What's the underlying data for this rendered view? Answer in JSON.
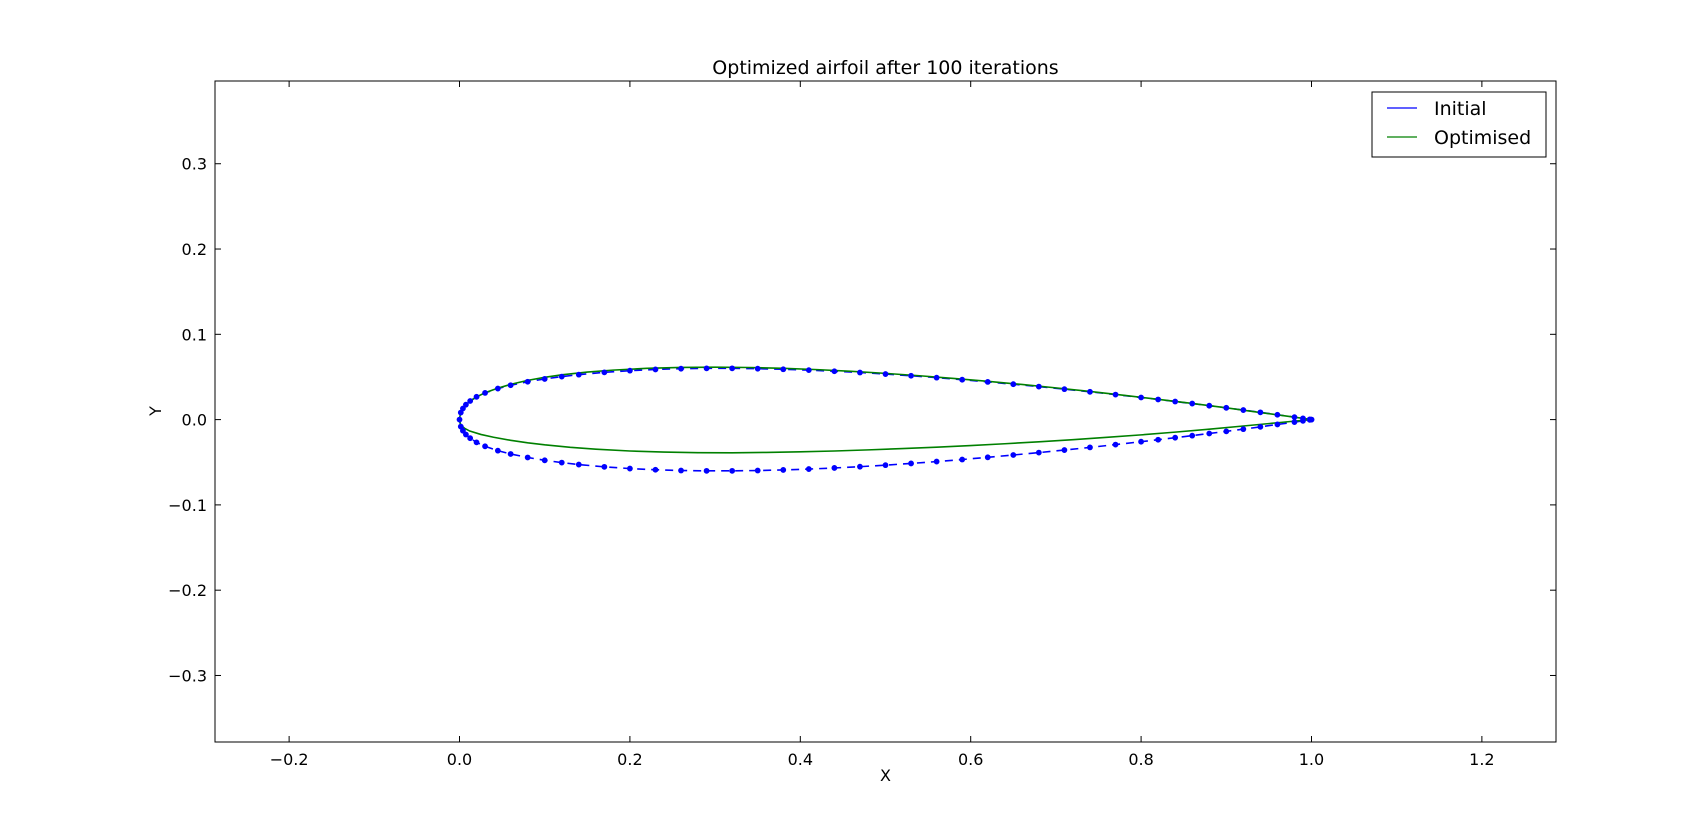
{
  "chart_data": {
    "type": "line",
    "title": "Optimized airfoil after 100 iterations",
    "xlabel": "X",
    "ylabel": "Y",
    "xlim": [
      -0.287,
      1.287
    ],
    "ylim": [
      -0.378,
      0.397
    ],
    "xticks": [
      -0.2,
      0.0,
      0.2,
      0.4,
      0.6,
      0.8,
      1.0,
      1.2
    ],
    "xtick_labels": [
      "−0.2",
      "0.0",
      "0.2",
      "0.4",
      "0.6",
      "0.8",
      "1.0",
      "1.2"
    ],
    "yticks": [
      -0.3,
      -0.2,
      -0.1,
      0.0,
      0.1,
      0.2,
      0.3
    ],
    "ytick_labels": [
      "−0.3",
      "−0.2",
      "−0.1",
      "0.0",
      "0.1",
      "0.2",
      "0.3"
    ],
    "grid": false,
    "legend_position": "top-right",
    "series": [
      {
        "name": "Initial",
        "color": "#0000ff",
        "style": "dashed line with circle markers",
        "points": [
          [
            1.0,
            0.0
          ],
          [
            0.998,
            0.0003
          ],
          [
            0.99,
            0.0014
          ],
          [
            0.98,
            0.0029
          ],
          [
            0.96,
            0.0057
          ],
          [
            0.94,
            0.0085
          ],
          [
            0.92,
            0.0112
          ],
          [
            0.9,
            0.0138
          ],
          [
            0.88,
            0.0163
          ],
          [
            0.86,
            0.0188
          ],
          [
            0.84,
            0.0212
          ],
          [
            0.82,
            0.0236
          ],
          [
            0.8,
            0.0259
          ],
          [
            0.77,
            0.0293
          ],
          [
            0.74,
            0.0326
          ],
          [
            0.71,
            0.0357
          ],
          [
            0.68,
            0.0387
          ],
          [
            0.65,
            0.0415
          ],
          [
            0.62,
            0.0442
          ],
          [
            0.59,
            0.0468
          ],
          [
            0.56,
            0.0492
          ],
          [
            0.53,
            0.0514
          ],
          [
            0.5,
            0.0534
          ],
          [
            0.47,
            0.0552
          ],
          [
            0.44,
            0.0567
          ],
          [
            0.41,
            0.058
          ],
          [
            0.38,
            0.059
          ],
          [
            0.35,
            0.0597
          ],
          [
            0.32,
            0.0601
          ],
          [
            0.29,
            0.0601
          ],
          [
            0.26,
            0.0597
          ],
          [
            0.23,
            0.0588
          ],
          [
            0.2,
            0.0574
          ],
          [
            0.17,
            0.0554
          ],
          [
            0.14,
            0.0527
          ],
          [
            0.12,
            0.0504
          ],
          [
            0.1,
            0.0477
          ],
          [
            0.08,
            0.0444
          ],
          [
            0.06,
            0.0403
          ],
          [
            0.045,
            0.0364
          ],
          [
            0.03,
            0.0313
          ],
          [
            0.02,
            0.0267
          ],
          [
            0.0125,
            0.0218
          ],
          [
            0.0075,
            0.0175
          ],
          [
            0.004,
            0.013
          ],
          [
            0.0015,
            0.0082
          ],
          [
            0.0,
            0.0
          ],
          [
            0.0015,
            -0.0082
          ],
          [
            0.004,
            -0.013
          ],
          [
            0.0075,
            -0.0175
          ],
          [
            0.0125,
            -0.0218
          ],
          [
            0.02,
            -0.0267
          ],
          [
            0.03,
            -0.0313
          ],
          [
            0.045,
            -0.0364
          ],
          [
            0.06,
            -0.0403
          ],
          [
            0.08,
            -0.0444
          ],
          [
            0.1,
            -0.0477
          ],
          [
            0.12,
            -0.0504
          ],
          [
            0.14,
            -0.0527
          ],
          [
            0.17,
            -0.0554
          ],
          [
            0.2,
            -0.0574
          ],
          [
            0.23,
            -0.0588
          ],
          [
            0.26,
            -0.0597
          ],
          [
            0.29,
            -0.0601
          ],
          [
            0.32,
            -0.0601
          ],
          [
            0.35,
            -0.0597
          ],
          [
            0.38,
            -0.059
          ],
          [
            0.41,
            -0.058
          ],
          [
            0.44,
            -0.0567
          ],
          [
            0.47,
            -0.0552
          ],
          [
            0.5,
            -0.0534
          ],
          [
            0.53,
            -0.0514
          ],
          [
            0.56,
            -0.0492
          ],
          [
            0.59,
            -0.0468
          ],
          [
            0.62,
            -0.0442
          ],
          [
            0.65,
            -0.0415
          ],
          [
            0.68,
            -0.0387
          ],
          [
            0.71,
            -0.0357
          ],
          [
            0.74,
            -0.0326
          ],
          [
            0.77,
            -0.0293
          ],
          [
            0.8,
            -0.0259
          ],
          [
            0.82,
            -0.0236
          ],
          [
            0.84,
            -0.0212
          ],
          [
            0.86,
            -0.0188
          ],
          [
            0.88,
            -0.0163
          ],
          [
            0.9,
            -0.0138
          ],
          [
            0.92,
            -0.0112
          ],
          [
            0.94,
            -0.0085
          ],
          [
            0.96,
            -0.0057
          ],
          [
            0.98,
            -0.0029
          ],
          [
            0.99,
            -0.0014
          ],
          [
            0.998,
            -0.0003
          ],
          [
            1.0,
            0.0
          ]
        ]
      },
      {
        "name": "Optimised",
        "color": "#008000",
        "style": "solid line",
        "points": [
          [
            1.0,
            0.0
          ],
          [
            0.98,
            0.0028
          ],
          [
            0.96,
            0.0056
          ],
          [
            0.94,
            0.0083
          ],
          [
            0.9,
            0.0138
          ],
          [
            0.86,
            0.0189
          ],
          [
            0.82,
            0.0238
          ],
          [
            0.78,
            0.0285
          ],
          [
            0.74,
            0.033
          ],
          [
            0.7,
            0.0372
          ],
          [
            0.66,
            0.0412
          ],
          [
            0.62,
            0.0449
          ],
          [
            0.58,
            0.0483
          ],
          [
            0.54,
            0.0514
          ],
          [
            0.5,
            0.0542
          ],
          [
            0.46,
            0.0566
          ],
          [
            0.42,
            0.0586
          ],
          [
            0.38,
            0.0601
          ],
          [
            0.34,
            0.0611
          ],
          [
            0.3,
            0.0615
          ],
          [
            0.26,
            0.0612
          ],
          [
            0.22,
            0.0601
          ],
          [
            0.18,
            0.058
          ],
          [
            0.15,
            0.0557
          ],
          [
            0.12,
            0.0525
          ],
          [
            0.1,
            0.0496
          ],
          [
            0.08,
            0.046
          ],
          [
            0.06,
            0.0413
          ],
          [
            0.045,
            0.0369
          ],
          [
            0.03,
            0.0315
          ],
          [
            0.02,
            0.0266
          ],
          [
            0.012,
            0.0213
          ],
          [
            0.006,
            0.0156
          ],
          [
            0.0025,
            0.0099
          ],
          [
            0.0005,
            0.004
          ],
          [
            0.0,
            0.0
          ],
          [
            0.0005,
            -0.0035
          ],
          [
            0.002,
            -0.0068
          ],
          [
            0.006,
            -0.0103
          ],
          [
            0.012,
            -0.0134
          ],
          [
            0.025,
            -0.0174
          ],
          [
            0.04,
            -0.0207
          ],
          [
            0.06,
            -0.0243
          ],
          [
            0.08,
            -0.0272
          ],
          [
            0.1,
            -0.0296
          ],
          [
            0.13,
            -0.0325
          ],
          [
            0.16,
            -0.0347
          ],
          [
            0.2,
            -0.0368
          ],
          [
            0.24,
            -0.0381
          ],
          [
            0.28,
            -0.0388
          ],
          [
            0.32,
            -0.0389
          ],
          [
            0.36,
            -0.0385
          ],
          [
            0.4,
            -0.0378
          ],
          [
            0.44,
            -0.0368
          ],
          [
            0.48,
            -0.0355
          ],
          [
            0.52,
            -0.034
          ],
          [
            0.56,
            -0.0323
          ],
          [
            0.6,
            -0.0304
          ],
          [
            0.64,
            -0.0283
          ],
          [
            0.68,
            -0.026
          ],
          [
            0.72,
            -0.0235
          ],
          [
            0.76,
            -0.0208
          ],
          [
            0.8,
            -0.0179
          ],
          [
            0.84,
            -0.0147
          ],
          [
            0.88,
            -0.0112
          ],
          [
            0.92,
            -0.0075
          ],
          [
            0.96,
            -0.0037
          ],
          [
            0.98,
            -0.0018
          ],
          [
            1.0,
            0.0
          ]
        ]
      }
    ]
  }
}
